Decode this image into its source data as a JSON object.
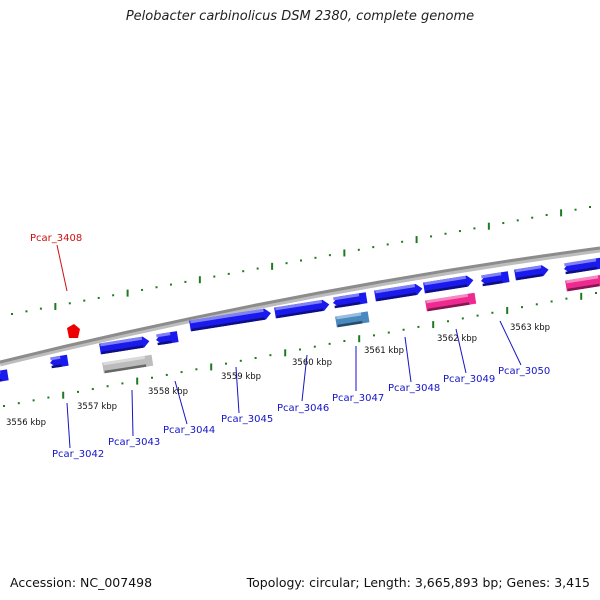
{
  "title": "Pelobacter carbinolicus DSM 2380, complete genome",
  "footer": {
    "accession": "Accession: NC_007498",
    "summary": "Topology: circular; Length: 3,665,893 bp; Genes: 3,415"
  },
  "colors": {
    "backbone": "#8c8c8c",
    "tick": "#1e7a1e",
    "gene_forward": "#1a1aee",
    "gene_pink": "#ee2a90",
    "gene_steel": "#4a88c0",
    "gene_gray": "#bcbcbc",
    "gene_red": "#ee0000",
    "label_blue": "#1515c8",
    "label_red": "#cc1010",
    "scale_text": "#111111"
  },
  "scale_labels": [
    {
      "kbp": 3556,
      "text": "3556 kbp"
    },
    {
      "kbp": 3557,
      "text": "3557 kbp"
    },
    {
      "kbp": 3558,
      "text": "3558 kbp"
    },
    {
      "kbp": 3559,
      "text": "3559 kbp"
    },
    {
      "kbp": 3560,
      "text": "3560 kbp"
    },
    {
      "kbp": 3561,
      "text": "3561 kbp"
    },
    {
      "kbp": 3562,
      "text": "3562 kbp"
    },
    {
      "kbp": 3563,
      "text": "3563 kbp"
    }
  ],
  "gene_labels": [
    {
      "name": "Pcar_3408",
      "kind": "red"
    },
    {
      "name": "Pcar_3042",
      "kind": "blue"
    },
    {
      "name": "Pcar_3043",
      "kind": "blue"
    },
    {
      "name": "Pcar_3044",
      "kind": "blue"
    },
    {
      "name": "Pcar_3045",
      "kind": "blue"
    },
    {
      "name": "Pcar_3046",
      "kind": "blue"
    },
    {
      "name": "Pcar_3047",
      "kind": "blue"
    },
    {
      "name": "Pcar_3048",
      "kind": "blue"
    },
    {
      "name": "Pcar_3049",
      "kind": "blue"
    },
    {
      "name": "Pcar_3050",
      "kind": "blue"
    }
  ]
}
